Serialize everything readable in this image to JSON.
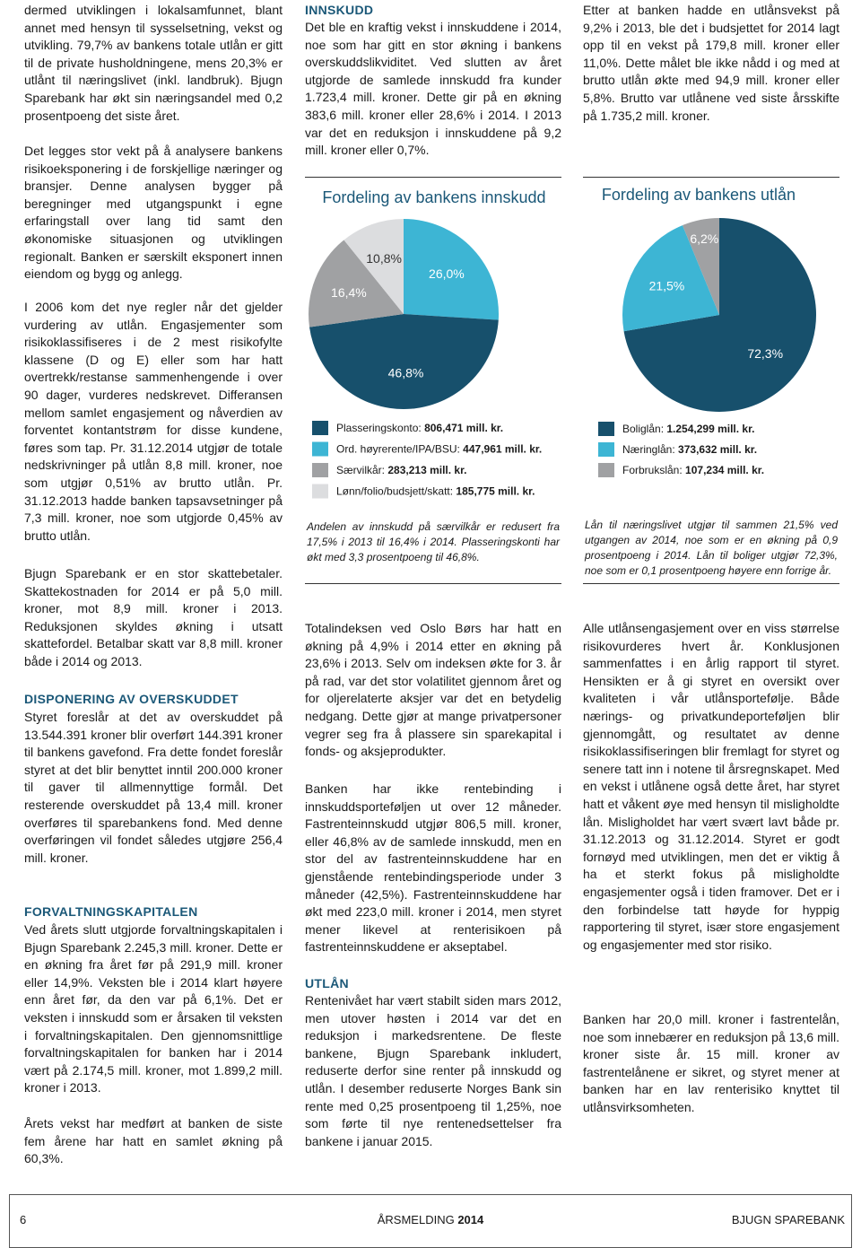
{
  "left_column": {
    "paragraphs": [
      "dermed utviklingen i lokalsamfunnet, blant annet med hensyn til sysselsetning, vekst og utvikling. 79,7% av bankens totale utlån er gitt til de private husholdningene, mens 20,3% er utlånt til næringslivet (inkl. landbruk). Bjugn Sparebank har økt sin næringsandel med 0,2 prosentpoeng det siste året.",
      "Det legges stor vekt på å analysere bankens risikoeksponering i de forskjellige næringer og bransjer. Denne analysen bygger på beregninger med utgangspunkt i egne erfaringstall over lang tid samt den økonomiske situasjonen og utviklingen regionalt. Banken er særskilt eksponert innen eiendom og bygg og anlegg.",
      "I 2006 kom det nye regler når det gjelder vurdering av utlån. Engasjementer som risikoklassifiseres i de 2 mest risikofylte klassene (D og E) eller som har hatt overtrekk/restanse sammenhengende i over 90 dager, vurderes nedskrevet. Differansen mellom samlet engasjement og nåverdien av forventet kontantstrøm for disse kundene, føres som tap. Pr. 31.12.2014 utgjør de totale nedskrivninger på utlån 8,8 mill. kroner, noe som utgjør 0,51% av brutto utlån. Pr. 31.12.2013 hadde banken tapsavsetninger på 7,3 mill. kroner, noe som utgjorde 0,45% av brutto utlån.",
      "Bjugn Sparebank er en stor skattebetaler. Skattekostnaden for 2014 er på 5,0 mill. kroner, mot 8,9 mill. kroner i 2013. Reduksjonen skyldes økning i utsatt skattefordel. Betalbar skatt var 8,8 mill. kroner både i 2014 og 2013."
    ],
    "heading_disponering": "DISPONERING AV OVERSKUDDET",
    "disponering": "Styret foreslår at det av overskuddet på 13.544.391 kroner blir overført 144.391 kroner til bankens gavefond. Fra dette fondet foreslår styret at det blir benyttet inntil 200.000 kroner til gaver til allmennyttige formål. Det resterende overskuddet på 13,4 mill. kroner overføres til sparebankens fond. Med denne overføringen vil fondet således utgjøre 256,4 mill. kroner.",
    "heading_forvaltning": "FORVALTNINGSKAPITALEN",
    "forvaltning": "Ved årets slutt utgjorde forvaltningskapitalen i Bjugn Sparebank 2.245,3 mill. kroner. Dette er en økning fra året før på 291,9 mill. kroner eller 14,9%. Veksten ble i 2014 klart høyere enn året før, da den var på 6,1%. Det er veksten i innskudd som er årsaken til veksten i forvaltningskapitalen. Den gjennomsnittlige forvaltningskapitalen for banken har i 2014 vært på 2.174,5 mill. kroner, mot 1.899,2 mill. kroner i 2013.",
    "vekst": "Årets vekst har medført at banken de siste fem årene har hatt en samlet økning på 60,3%."
  },
  "middle_column": {
    "heading_innskudd": "INNSKUDD",
    "innskudd": "Det ble en kraftig vekst i innskuddene i 2014, noe som har gitt en stor økning i bankens overskuddslikviditet. Ved slutten av året utgjorde de samlede innskudd fra kunder 1.723,4 mill. kroner. Dette gir på en økning 383,6 mill. kroner eller 28,6% i 2014. I 2013 var det en reduksjon i innskuddene på 9,2 mill. kroner eller 0,7%.",
    "paragraphs": [
      "Totalindeksen ved Oslo Børs har hatt en økning på 4,9% i 2014 etter en økning på 23,6% i 2013. Selv om indeksen økte for 3. år på rad, var det stor volatilitet gjennom året og for oljerelaterte aksjer var det en betydelig nedgang. Dette gjør at mange privatpersoner vegrer seg fra å plassere sin sparekapital i fonds- og aksjeprodukter.",
      "Banken har ikke rentebinding i innskuddsporteføljen ut over 12 måneder. Fastrenteinnskudd utgjør 806,5 mill. kroner, eller 46,8% av de samlede innskudd, men en stor del av fastrenteinnskuddene har en gjenstående rentebindingsperiode under 3 måneder (42,5%). Fastrenteinnskuddene har økt med 223,0 mill. kroner i 2014, men styret mener likevel at renterisikoen på fastrenteinnskuddene er akseptabel."
    ],
    "heading_utlan": "UTLÅN",
    "utlan": "Rentenivået har vært stabilt siden mars 2012, men utover høsten i 2014 var det en reduksjon i markedsrentene. De fleste bankene, Bjugn Sparebank inkludert, reduserte derfor sine renter på innskudd og utlån. I desember reduserte Norges Bank sin rente med 0,25 prosentpoeng til 1,25%, noe som førte til nye rentenedsettelser fra bankene i januar 2015."
  },
  "right_column": {
    "intro": "Etter at banken hadde en utlånsvekst på 9,2% i 2013, ble det i budsjettet for 2014 lagt opp til en vekst på 179,8 mill. kroner eller 11,0%. Dette målet ble ikke nådd i og med at brutto utlån økte med 94,9 mill. kroner eller 5,8%. Brutto var utlånene ved siste årsskifte på 1.735,2 mill. kroner.",
    "paragraphs": [
      "Alle utlånsengasjement over en viss størrelse risikovurderes hvert år. Konklusjonen sammenfattes i en årlig rapport til styret. Hensikten er å gi styret en oversikt over kvaliteten i vår utlånsportefølje. Både nærings- og privatkundeporteføljen blir gjennomgått, og resultatet av denne risikoklassifiseringen blir fremlagt for styret og senere tatt inn i notene til årsregnskapet. Med en vekst i utlånene også dette året, har styret hatt et våkent øye med hensyn til misligholdte lån. Misligholdet har vært svært lavt både pr. 31.12.2013 og 31.12.2014. Styret er godt fornøyd med utviklingen, men det er viktig å ha et sterkt fokus på misligholdte engasjementer også i tiden framover. Det er i den forbindelse tatt høyde for hyppig rapportering til styret, især store engasjement og engasjementer med stor risiko.",
      "Banken har 20,0 mill. kroner i fastrentelån, noe som innebærer en reduksjon på 13,6 mill. kroner siste år. 15 mill. kroner av fastrentelånene er sikret, og styret mener at banken har en lav renterisiko knyttet til utlånsvirksomheten."
    ]
  },
  "chart_data": [
    {
      "type": "pie",
      "title": "Fordeling av bankens innskudd",
      "categories": [
        "Plasseringskonto:",
        "Ord. høyrerente/IPA/BSU:",
        "Særvilkår:",
        "Lønn/folio/budsjett/skatt:"
      ],
      "legend_amounts": [
        "806,471 mill. kr.",
        "447,961 mill. kr.",
        "283,213 mill. kr.",
        "185,775 mill. kr."
      ],
      "values": [
        46.8,
        26.0,
        16.4,
        10.8
      ],
      "value_labels": [
        "46,8%",
        "26,0%",
        "16,4%",
        "10,8%"
      ],
      "colors": [
        "#17506c",
        "#3db5d4",
        "#a0a1a3",
        "#dcdddf"
      ],
      "caption": "Andelen av innskudd på særvilkår er redusert fra 17,5% i 2013 til 16,4% i 2014. Plasseringskonti har økt med 3,3 prosentpoeng til 46,8%."
    },
    {
      "type": "pie",
      "title": "Fordeling av bankens utlån",
      "categories": [
        "Boliglån:",
        "Næringlån:",
        "Forbrukslån:"
      ],
      "legend_amounts": [
        "1.254,299 mill. kr.",
        "373,632 mill. kr.",
        "107,234 mill. kr."
      ],
      "values": [
        72.3,
        21.5,
        6.2
      ],
      "value_labels": [
        "72,3%",
        "21,5%",
        "6,2%"
      ],
      "colors": [
        "#17506c",
        "#3db5d4",
        "#a0a1a3"
      ],
      "caption": "Lån til næringslivet utgjør til sammen 21,5% ved utgangen av 2014, noe som er en økning på 0,9 prosentpoeng i 2014. Lån til boliger utgjør 72,3%, noe som er 0,1 prosentpoeng høyere enn forrige år."
    }
  ],
  "footer": {
    "page": "6",
    "report": "ÅRSMELDING",
    "year": "2014",
    "bank": "BJUGN SPAREBANK"
  }
}
